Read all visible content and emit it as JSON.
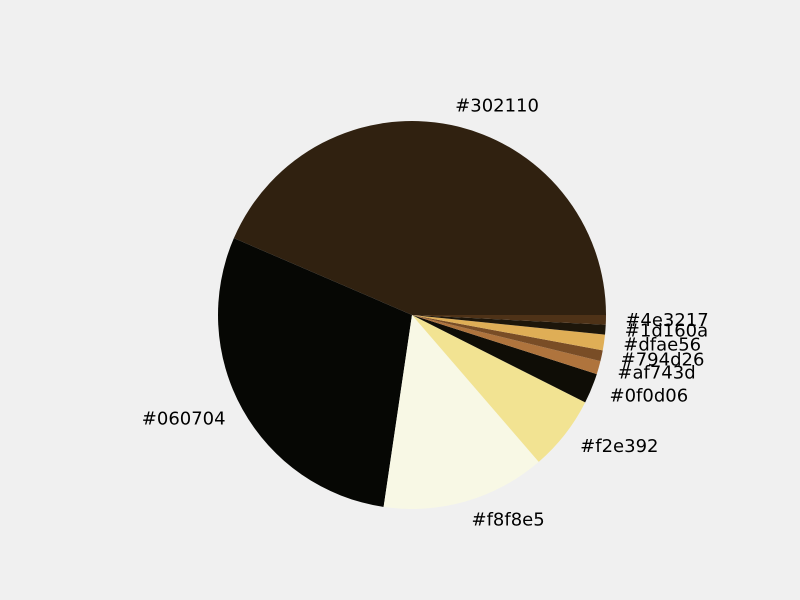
{
  "chart_data": {
    "type": "pie",
    "title": "",
    "start_angle_deg": 0,
    "direction": "counterclockwise",
    "slices": [
      {
        "label": "#302110",
        "value": 43.3,
        "color": "#302110"
      },
      {
        "label": "#060704",
        "value": 29.0,
        "color": "#060704"
      },
      {
        "label": "#f8f8e5",
        "value": 13.6,
        "color": "#f8f8e5"
      },
      {
        "label": "#f2e392",
        "value": 6.2,
        "color": "#f2e392"
      },
      {
        "label": "#0f0d06",
        "value": 2.5,
        "color": "#0f0d06"
      },
      {
        "label": "#af743d",
        "value": 1.1,
        "color": "#af743d"
      },
      {
        "label": "#794d26",
        "value": 0.9,
        "color": "#794d26"
      },
      {
        "label": "#dfae56",
        "value": 1.3,
        "color": "#dfae56"
      },
      {
        "label": "#1d160a",
        "value": 0.8,
        "color": "#1d160a"
      },
      {
        "label": "#4e3217",
        "value": 0.8,
        "color": "#4e3217"
      }
    ]
  }
}
